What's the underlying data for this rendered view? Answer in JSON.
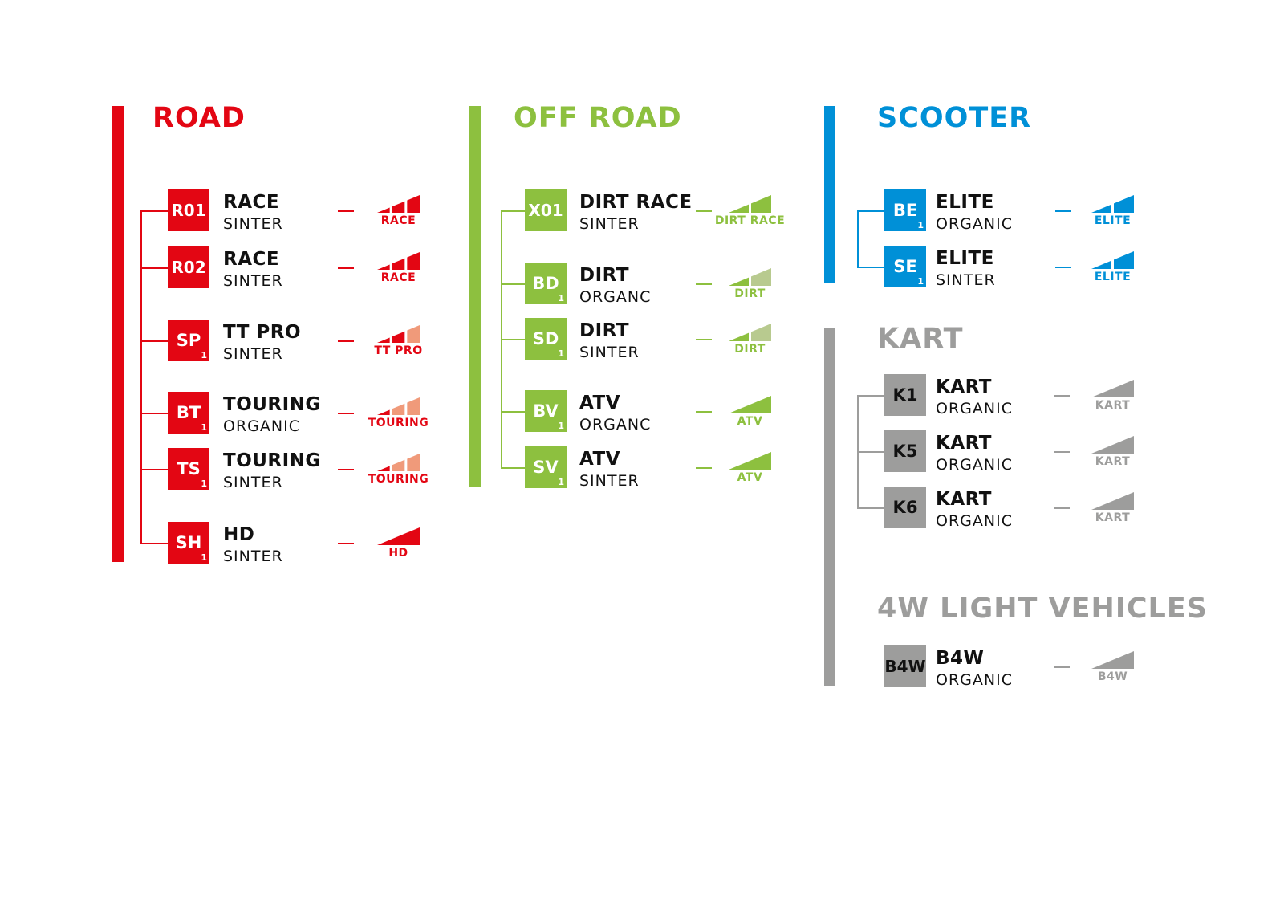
{
  "sections": [
    {
      "title": "ROAD",
      "color": "#e30613",
      "light": "#f09a7a",
      "items": [
        {
          "code": "R01",
          "sub": "",
          "name": "RACE",
          "material": "SINTER",
          "rating": "RACE",
          "segments": 3,
          "filled": 3
        },
        {
          "code": "R02",
          "sub": "",
          "name": "RACE",
          "material": "SINTER",
          "rating": "RACE",
          "segments": 3,
          "filled": 3
        },
        {
          "code": "SP",
          "sub": "1",
          "name": "TT PRO",
          "material": "SINTER",
          "rating": "TT PRO",
          "segments": 3,
          "filled": 2
        },
        {
          "code": "BT",
          "sub": "1",
          "name": "TOURING",
          "material": "ORGANIC",
          "rating": "TOURING",
          "segments": 3,
          "filled": 1
        },
        {
          "code": "TS",
          "sub": "1",
          "name": "TOURING",
          "material": "SINTER",
          "rating": "TOURING",
          "segments": 3,
          "filled": 1
        },
        {
          "code": "SH",
          "sub": "1",
          "name": "HD",
          "material": "SINTER",
          "rating": "HD",
          "segments": 1,
          "filled": 1
        }
      ]
    },
    {
      "title": "OFF ROAD",
      "color": "#8dc03f",
      "light": "#b8ca8f",
      "items": [
        {
          "code": "X01",
          "sub": "",
          "name": "DIRT RACE",
          "material": "SINTER",
          "rating": "DIRT RACE",
          "segments": 2,
          "filled": 2
        },
        {
          "code": "BD",
          "sub": "1",
          "name": "DIRT",
          "material": "ORGANC",
          "rating": "DIRT",
          "segments": 2,
          "filled": 1
        },
        {
          "code": "SD",
          "sub": "1",
          "name": "DIRT",
          "material": "SINTER",
          "rating": "DIRT",
          "segments": 2,
          "filled": 1
        },
        {
          "code": "BV",
          "sub": "1",
          "name": "ATV",
          "material": "ORGANC",
          "rating": "ATV",
          "segments": 1,
          "filled": 1
        },
        {
          "code": "SV",
          "sub": "1",
          "name": "ATV",
          "material": "SINTER",
          "rating": "ATV",
          "segments": 1,
          "filled": 1
        }
      ]
    },
    {
      "title": "SCOOTER",
      "color": "#0090d7",
      "light": "#8cc8ec",
      "items": [
        {
          "code": "BE",
          "sub": "1",
          "name": "ELITE",
          "material": "ORGANIC",
          "rating": "ELITE",
          "segments": 2,
          "filled": 2
        },
        {
          "code": "SE",
          "sub": "1",
          "name": "ELITE",
          "material": "SINTER",
          "rating": "ELITE",
          "segments": 2,
          "filled": 2
        }
      ]
    },
    {
      "title": "KART",
      "color": "#9d9d9c",
      "light": "#cfcfcf",
      "items": [
        {
          "code": "K1",
          "sub": "",
          "name": "KART",
          "material": "ORGANIC",
          "rating": "KART",
          "segments": 1,
          "filled": 1
        },
        {
          "code": "K5",
          "sub": "",
          "name": "KART",
          "material": "ORGANIC",
          "rating": "KART",
          "segments": 1,
          "filled": 1
        },
        {
          "code": "K6",
          "sub": "",
          "name": "KART",
          "material": "ORGANIC",
          "rating": "KART",
          "segments": 1,
          "filled": 1
        }
      ]
    },
    {
      "title": "4W LIGHT VEHICLES",
      "color": "#9d9d9c",
      "light": "#cfcfcf",
      "items": [
        {
          "code": "B4W",
          "sub": "",
          "name": "B4W",
          "material": "ORGANIC",
          "rating": "B4W",
          "segments": 1,
          "filled": 1
        }
      ]
    }
  ]
}
